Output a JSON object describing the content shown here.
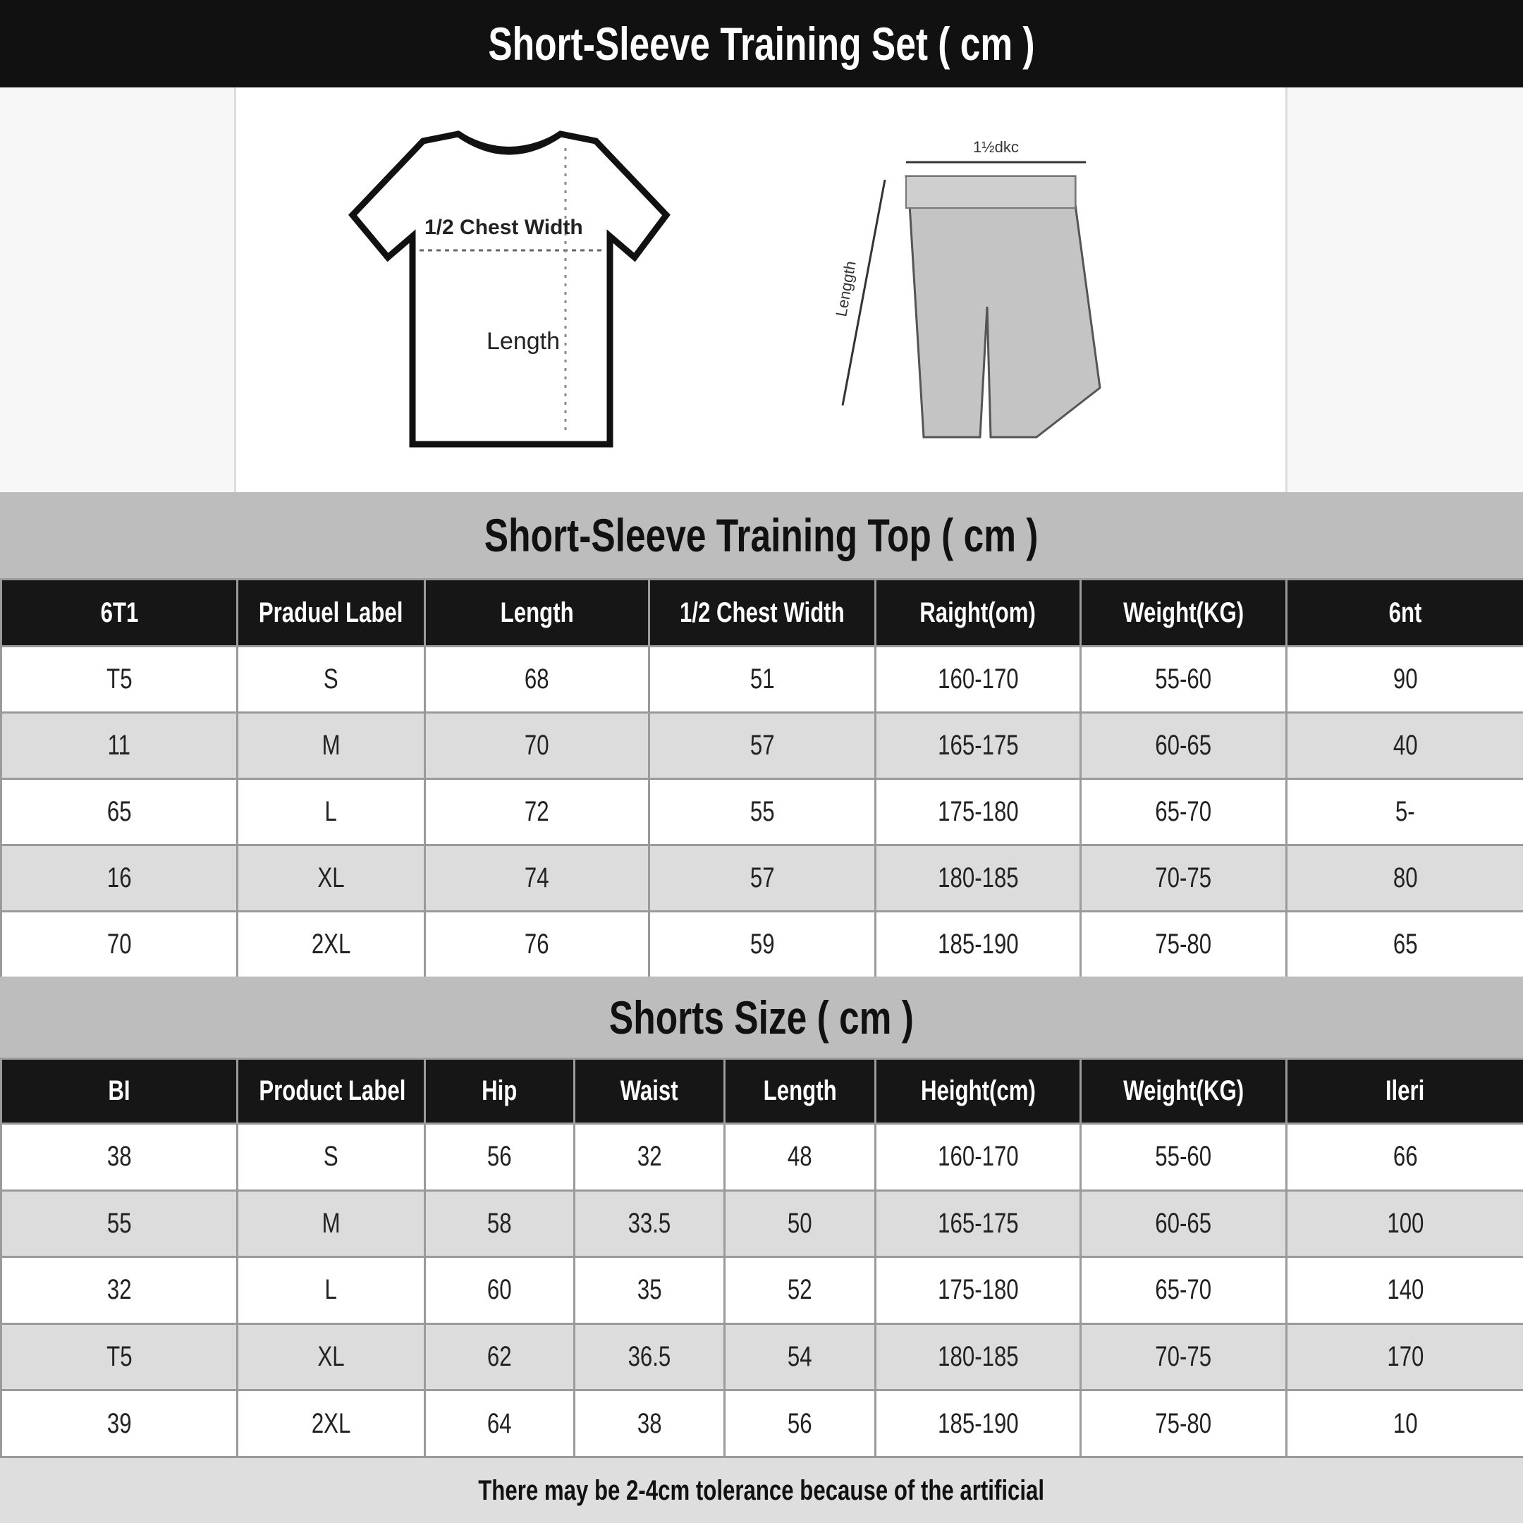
{
  "set_title": "Short-Sleeve Training Set ( cm )",
  "diagram": {
    "shirt_chest_label": "1/2 Chest Width",
    "shirt_length_label": "Length",
    "shorts_waist_label": "1½dkc",
    "shorts_length_label": "Lenggth"
  },
  "top_table": {
    "title": "Short-Sleeve Training Top ( cm )",
    "headers": [
      "6T1",
      "Praduel Label",
      "Length",
      "1/2 Chest Width",
      "Raight(om)",
      "Weight(KG)",
      "6nt"
    ],
    "rows": [
      [
        "T5",
        "S",
        "68",
        "51",
        "160-170",
        "55-60",
        "90"
      ],
      [
        "11",
        "M",
        "70",
        "57",
        "165-175",
        "60-65",
        "40"
      ],
      [
        "65",
        "L",
        "72",
        "55",
        "175-180",
        "65-70",
        "5-"
      ],
      [
        "16",
        "XL",
        "74",
        "57",
        "180-185",
        "70-75",
        "80"
      ],
      [
        "70",
        "2XL",
        "76",
        "59",
        "185-190",
        "75-80",
        "65"
      ]
    ]
  },
  "shorts_table": {
    "title": "Shorts Size ( cm )",
    "headers": [
      "BI",
      "Product Label",
      "Hip",
      "Waist",
      "Length",
      "Height(cm)",
      "Weight(KG)",
      "Ileri"
    ],
    "rows": [
      [
        "38",
        "S",
        "56",
        "32",
        "48",
        "160-170",
        "55-60",
        "66"
      ],
      [
        "55",
        "M",
        "58",
        "33.5",
        "50",
        "165-175",
        "60-65",
        "100"
      ],
      [
        "32",
        "L",
        "60",
        "35",
        "52",
        "175-180",
        "65-70",
        "140"
      ],
      [
        "T5",
        "XL",
        "62",
        "36.5",
        "54",
        "180-185",
        "70-75",
        "170"
      ],
      [
        "39",
        "2XL",
        "64",
        "38",
        "56",
        "185-190",
        "75-80",
        "10"
      ]
    ]
  },
  "footer_note": "There may be 2-4cm tolerance because of the artificial"
}
